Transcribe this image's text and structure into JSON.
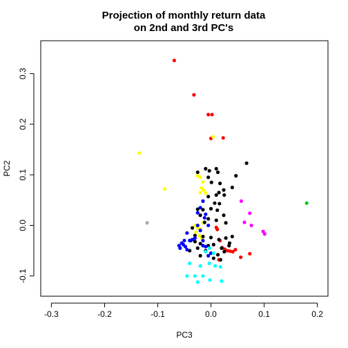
{
  "chart_data": {
    "type": "scatter",
    "title": [
      "Projection of monthly return data",
      "on 2nd and 3rd PC's"
    ],
    "xlabel": "PC3",
    "ylabel": "PC2",
    "xlim": [
      -0.32,
      0.22
    ],
    "ylim": [
      -0.14,
      0.365
    ],
    "xticks": [
      -0.3,
      -0.2,
      -0.1,
      0.0,
      0.1,
      0.2
    ],
    "xtick_labels": [
      "-0.3",
      "-0.2",
      "-0.1",
      "0.0",
      "0.1",
      "0.2"
    ],
    "yticks": [
      -0.1,
      0.0,
      0.1,
      0.2,
      0.3
    ],
    "ytick_labels": [
      "-0.1",
      "0.0",
      "0.1",
      "0.2",
      "0.3"
    ],
    "series": [
      {
        "name": "red",
        "color": "#ff0000",
        "points": [
          [
            -0.069,
            0.326
          ],
          [
            -0.032,
            0.258
          ],
          [
            0.002,
            0.219
          ],
          [
            -0.005,
            0.219
          ],
          [
            0.023,
            0.173
          ],
          [
            0.0,
            0.172
          ],
          [
            0.01,
            -0.004
          ],
          [
            0.012,
            -0.008
          ],
          [
            0.017,
            -0.03
          ],
          [
            0.021,
            -0.044
          ],
          [
            0.026,
            -0.047
          ],
          [
            0.031,
            -0.05
          ],
          [
            0.036,
            -0.051
          ],
          [
            0.041,
            -0.052
          ],
          [
            0.046,
            -0.048
          ],
          [
            0.056,
            -0.063
          ],
          [
            0.073,
            -0.056
          ],
          [
            0.015,
            -0.068
          ]
        ]
      },
      {
        "name": "yellow",
        "color": "#ffff00",
        "points": [
          [
            -0.135,
            0.143
          ],
          [
            -0.087,
            0.072
          ],
          [
            0.004,
            0.175
          ],
          [
            -0.025,
            0.098
          ],
          [
            -0.02,
            0.095
          ],
          [
            -0.015,
            0.086
          ],
          [
            -0.018,
            0.074
          ],
          [
            -0.014,
            0.07
          ],
          [
            -0.01,
            0.064
          ],
          [
            -0.02,
            0.065
          ],
          [
            -0.03,
            0.0
          ],
          [
            -0.025,
            -0.005
          ],
          [
            -0.02,
            -0.008
          ],
          [
            -0.015,
            0.005
          ],
          [
            -0.028,
            -0.013
          ],
          [
            -0.022,
            -0.02
          ],
          [
            -0.018,
            -0.025
          ]
        ]
      },
      {
        "name": "black",
        "color": "#000000",
        "points": [
          [
            0.067,
            0.123
          ],
          [
            -0.025,
            0.105
          ],
          [
            -0.01,
            0.112
          ],
          [
            -0.003,
            0.108
          ],
          [
            0.01,
            0.112
          ],
          [
            0.013,
            0.105
          ],
          [
            0.047,
            0.098
          ],
          [
            -0.005,
            0.095
          ],
          [
            0.001,
            0.085
          ],
          [
            0.017,
            0.083
          ],
          [
            0.04,
            0.075
          ],
          [
            0.015,
            0.065
          ],
          [
            0.024,
            0.07
          ],
          [
            0.01,
            0.06
          ],
          [
            0.025,
            0.06
          ],
          [
            -0.005,
            0.057
          ],
          [
            0.007,
            0.044
          ],
          [
            0.016,
            0.043
          ],
          [
            0.0,
            0.033
          ],
          [
            -0.025,
            0.032
          ],
          [
            -0.015,
            0.031
          ],
          [
            0.012,
            0.03
          ],
          [
            0.024,
            0.02
          ],
          [
            -0.02,
            0.02
          ],
          [
            -0.005,
            0.013
          ],
          [
            0.01,
            0.01
          ],
          [
            0.028,
            0.005
          ],
          [
            -0.012,
            0.006
          ],
          [
            -0.035,
            -0.005
          ],
          [
            -0.03,
            -0.02
          ],
          [
            -0.015,
            -0.022
          ],
          [
            0.0,
            -0.024
          ],
          [
            0.015,
            -0.028
          ],
          [
            0.028,
            -0.025
          ],
          [
            -0.03,
            -0.032
          ],
          [
            -0.02,
            -0.036
          ],
          [
            -0.005,
            -0.04
          ],
          [
            0.005,
            -0.038
          ],
          [
            0.02,
            -0.045
          ],
          [
            0.034,
            -0.04
          ],
          [
            -0.025,
            -0.045
          ],
          [
            -0.01,
            -0.05
          ],
          [
            0.0,
            -0.055
          ],
          [
            0.013,
            -0.058
          ],
          [
            0.025,
            -0.052
          ],
          [
            -0.038,
            -0.03
          ],
          [
            -0.04,
            -0.05
          ],
          [
            -0.02,
            -0.06
          ],
          [
            0.005,
            -0.065
          ],
          [
            0.018,
            -0.068
          ],
          [
            0.035,
            -0.035
          ],
          [
            0.04,
            -0.022
          ]
        ]
      },
      {
        "name": "blue",
        "color": "#0000ff",
        "points": [
          [
            -0.015,
            0.048
          ],
          [
            -0.02,
            0.035
          ],
          [
            -0.025,
            0.025
          ],
          [
            -0.01,
            0.022
          ],
          [
            -0.012,
            0.015
          ],
          [
            -0.005,
            0.0
          ],
          [
            -0.025,
            0.0
          ],
          [
            -0.02,
            -0.01
          ],
          [
            -0.045,
            -0.015
          ],
          [
            -0.015,
            -0.03
          ],
          [
            -0.03,
            -0.025
          ],
          [
            -0.035,
            -0.028
          ],
          [
            -0.04,
            -0.03
          ],
          [
            -0.05,
            -0.03
          ],
          [
            -0.055,
            -0.035
          ],
          [
            -0.052,
            -0.038
          ],
          [
            -0.048,
            -0.042
          ],
          [
            -0.06,
            -0.04
          ],
          [
            -0.058,
            -0.045
          ],
          [
            -0.015,
            -0.04
          ],
          [
            -0.01,
            -0.042
          ],
          [
            -0.045,
            -0.048
          ],
          [
            -0.005,
            -0.06
          ],
          [
            0.0,
            -0.055
          ]
        ]
      },
      {
        "name": "cyan",
        "color": "#00ffff",
        "points": [
          [
            -0.003,
            -0.045
          ],
          [
            -0.01,
            -0.052
          ],
          [
            0.005,
            -0.055
          ],
          [
            -0.04,
            -0.075
          ],
          [
            -0.02,
            -0.08
          ],
          [
            -0.003,
            -0.075
          ],
          [
            0.008,
            -0.08
          ],
          [
            0.018,
            -0.082
          ],
          [
            -0.045,
            -0.1
          ],
          [
            -0.03,
            -0.1
          ],
          [
            -0.015,
            -0.1
          ],
          [
            -0.025,
            -0.112
          ],
          [
            -0.002,
            -0.108
          ],
          [
            0.02,
            -0.11
          ]
        ]
      },
      {
        "name": "magenta",
        "color": "#ff00ff",
        "points": [
          [
            0.057,
            0.048
          ],
          [
            0.073,
            0.024
          ],
          [
            0.063,
            0.006
          ],
          [
            0.076,
            0.0
          ],
          [
            0.098,
            -0.012
          ],
          [
            0.101,
            -0.017
          ]
        ]
      },
      {
        "name": "green",
        "color": "#00cc00",
        "points": [
          [
            0.18,
            0.044
          ]
        ]
      },
      {
        "name": "gray",
        "color": "#aaaaaa",
        "points": [
          [
            -0.12,
            0.005
          ]
        ]
      }
    ]
  }
}
